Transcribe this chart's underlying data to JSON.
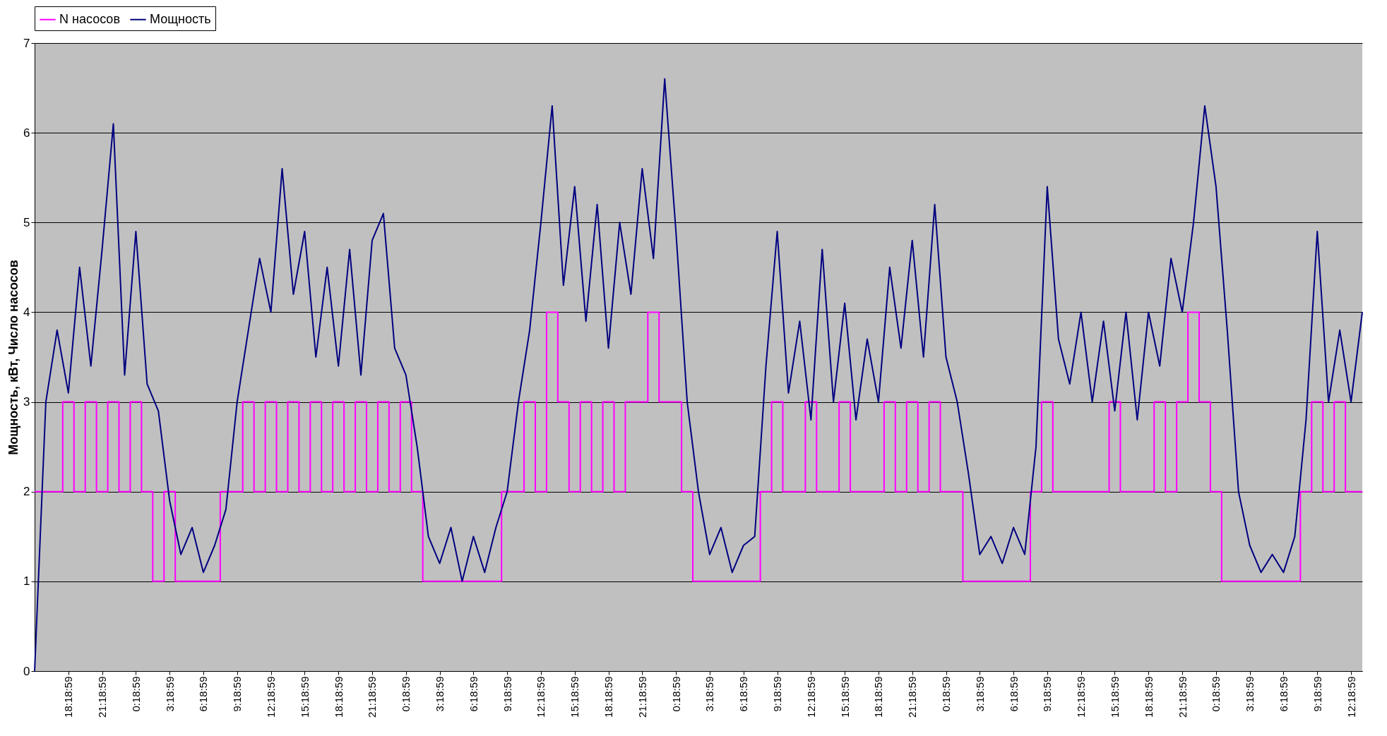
{
  "chart_data": {
    "type": "line",
    "ylabel": "Мощность, кВт, Число насосов",
    "ylim": [
      0,
      7
    ],
    "yticks": [
      0,
      1,
      2,
      3,
      4,
      5,
      6,
      7
    ],
    "categories": [
      null,
      null,
      null,
      "18:18:59",
      null,
      null,
      "21:18:59",
      null,
      null,
      "0:18:59",
      null,
      null,
      "3:18:59",
      null,
      null,
      "6:18:59",
      null,
      null,
      "9:18:59",
      null,
      null,
      "12:18:59",
      null,
      null,
      "15:18:59",
      null,
      null,
      "18:18:59",
      null,
      null,
      "21:18:59",
      null,
      null,
      "0:18:59",
      null,
      null,
      "3:18:59",
      null,
      null,
      "6:18:59",
      null,
      null,
      "9:18:59",
      null,
      null,
      "12:18:59",
      null,
      null,
      "15:18:59",
      null,
      null,
      "18:18:59",
      null,
      null,
      "21:18:59",
      null,
      null,
      "0:18:59",
      null,
      null,
      "3:18:59",
      null,
      null,
      "6:18:59",
      null,
      null,
      "9:18:59",
      null,
      null,
      "12:18:59",
      null,
      null,
      "15:18:59",
      null,
      null,
      "18:18:59",
      null,
      null,
      "21:18:59",
      null,
      null,
      "0:18:59",
      null,
      null,
      "3:18:59",
      null,
      null,
      "6:18:59",
      null,
      null,
      "9:18:59",
      null,
      null,
      "12:18:59",
      null,
      null,
      "15:18:59",
      null,
      null,
      "18:18:59",
      null,
      null,
      "21:18:59",
      null,
      null,
      "0:18:59",
      null,
      null,
      "3:18:59",
      null,
      null,
      "6:18:59",
      null,
      null,
      "9:18:59",
      null,
      null,
      "12:18:59",
      null
    ],
    "grid": "y",
    "legend": "top",
    "marker": "none",
    "line_style": "solid",
    "series": [
      {
        "name": "N насосов",
        "color": "#ff00ff",
        "type": "step",
        "values": [
          2,
          2,
          2,
          3,
          2,
          3,
          2,
          3,
          2,
          3,
          2,
          1,
          2,
          1,
          1,
          1,
          1,
          2,
          2,
          3,
          2,
          3,
          2,
          3,
          2,
          3,
          2,
          3,
          2,
          3,
          2,
          3,
          2,
          3,
          2,
          1,
          1,
          1,
          1,
          1,
          1,
          1,
          2,
          2,
          3,
          2,
          4,
          3,
          2,
          3,
          2,
          3,
          2,
          3,
          3,
          4,
          3,
          3,
          2,
          1,
          1,
          1,
          1,
          1,
          1,
          2,
          3,
          2,
          2,
          3,
          2,
          2,
          3,
          2,
          2,
          2,
          3,
          2,
          3,
          2,
          3,
          2,
          2,
          1,
          1,
          1,
          1,
          1,
          1,
          2,
          3,
          2,
          2,
          2,
          2,
          2,
          3,
          2,
          2,
          2,
          3,
          2,
          3,
          4,
          3,
          2,
          1,
          1,
          1,
          1,
          1,
          1,
          1,
          2,
          3,
          2,
          3,
          2,
          2
        ]
      },
      {
        "name": "Мощность",
        "color": "#000080",
        "values": [
          0,
          3.0,
          3.8,
          3.1,
          4.5,
          3.4,
          4.7,
          6.1,
          3.3,
          4.9,
          3.2,
          2.9,
          1.9,
          1.3,
          1.6,
          1.1,
          1.4,
          1.8,
          3.0,
          3.8,
          4.6,
          4.0,
          5.6,
          4.2,
          4.9,
          3.5,
          4.5,
          3.4,
          4.7,
          3.3,
          4.8,
          5.1,
          3.6,
          3.3,
          2.5,
          1.5,
          1.2,
          1.6,
          1.0,
          1.5,
          1.1,
          1.6,
          2.0,
          3.0,
          3.8,
          5.0,
          6.3,
          4.3,
          5.4,
          3.9,
          5.2,
          3.6,
          5.0,
          4.2,
          5.6,
          4.6,
          6.6,
          4.9,
          3.0,
          2.0,
          1.3,
          1.6,
          1.1,
          1.4,
          1.5,
          3.4,
          4.9,
          3.1,
          3.9,
          2.8,
          4.7,
          3.0,
          4.1,
          2.8,
          3.7,
          3.0,
          4.5,
          3.6,
          4.8,
          3.5,
          5.2,
          3.5,
          3.0,
          2.2,
          1.3,
          1.5,
          1.2,
          1.6,
          1.3,
          2.5,
          5.4,
          3.7,
          3.2,
          4.0,
          3.0,
          3.9,
          2.9,
          4.0,
          2.8,
          4.0,
          3.4,
          4.6,
          4.0,
          5.0,
          6.3,
          5.4,
          3.8,
          2.0,
          1.4,
          1.1,
          1.3,
          1.1,
          1.5,
          2.8,
          4.9,
          3.0,
          3.8,
          3.0,
          4.0
        ]
      }
    ]
  }
}
